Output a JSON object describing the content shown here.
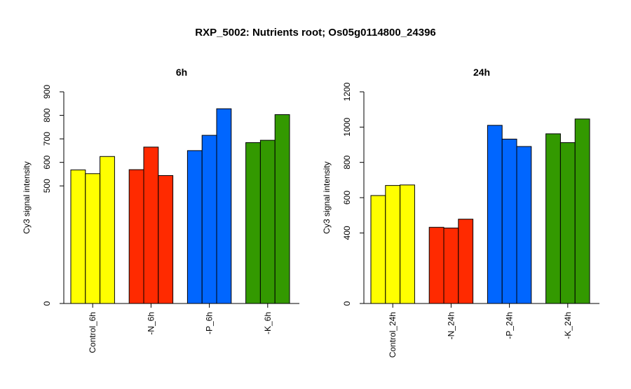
{
  "title": "RXP_5002: Nutrients root; Os05g0114800_24396",
  "chart_data": [
    {
      "type": "bar",
      "title": "6h",
      "ylabel": "Cy3 signal intensity",
      "ylim": [
        0,
        900
      ],
      "yticks": [
        0,
        500,
        600,
        700,
        800,
        900
      ],
      "categories": [
        "Control_6h",
        "-N_6h",
        "-P_6h",
        "-K_6h"
      ],
      "colors": [
        "#ffff00",
        "#ff2a00",
        "#0066ff",
        "#339900"
      ],
      "replicates": [
        [
          568,
          552,
          625
        ],
        [
          569,
          665,
          544
        ],
        [
          650,
          715,
          828
        ],
        [
          684,
          694,
          803
        ]
      ]
    },
    {
      "type": "bar",
      "title": "24h",
      "ylabel": "Cy3 signal intensity",
      "ylim": [
        0,
        1200
      ],
      "yticks": [
        0,
        400,
        600,
        800,
        1000,
        1200
      ],
      "categories": [
        "Control_24h",
        "-N_24h",
        "-P_24h",
        "-K_24h"
      ],
      "colors": [
        "#ffff00",
        "#ff2a00",
        "#0066ff",
        "#339900"
      ],
      "replicates": [
        [
          612,
          669,
          672
        ],
        [
          432,
          428,
          478
        ],
        [
          1010,
          932,
          890
        ],
        [
          962,
          912,
          1046
        ]
      ]
    }
  ]
}
